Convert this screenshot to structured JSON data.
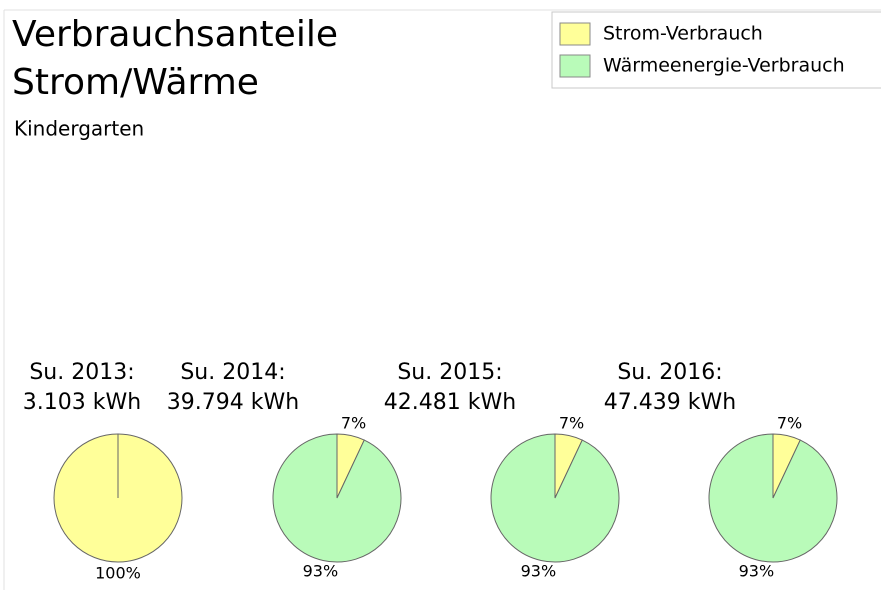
{
  "title": [
    "Verbrauchsanteile",
    "Strom/Wärme"
  ],
  "subtitle": "Kindergarten",
  "chart_data": [
    {
      "type": "pie",
      "label": "Su. 2013:",
      "total": "3.103 kWh",
      "categories": [
        "Strom-Verbrauch",
        "Wärmeenergie-Verbrauch"
      ],
      "colors": [
        "#ffff99",
        "#b9fbb9"
      ],
      "values": [
        100,
        0
      ],
      "value_labels": [
        "100%",
        null
      ]
    },
    {
      "type": "pie",
      "label": "Su. 2014:",
      "total": "39.794 kWh",
      "categories": [
        "Strom-Verbrauch",
        "Wärmeenergie-Verbrauch"
      ],
      "colors": [
        "#ffff99",
        "#b9fbb9"
      ],
      "values": [
        7,
        93
      ],
      "value_labels": [
        "7%",
        "93%"
      ]
    },
    {
      "type": "pie",
      "label": "Su. 2015:",
      "total": "42.481 kWh",
      "categories": [
        "Strom-Verbrauch",
        "Wärmeenergie-Verbrauch"
      ],
      "colors": [
        "#ffff99",
        "#b9fbb9"
      ],
      "values": [
        7,
        93
      ],
      "value_labels": [
        "7%",
        "93%"
      ]
    },
    {
      "type": "pie",
      "label": "Su. 2016:",
      "total": "47.439 kWh",
      "categories": [
        "Strom-Verbrauch",
        "Wärmeenergie-Verbrauch"
      ],
      "colors": [
        "#ffff99",
        "#b9fbb9"
      ],
      "values": [
        7,
        93
      ],
      "value_labels": [
        "7%",
        "93%"
      ]
    }
  ]
}
